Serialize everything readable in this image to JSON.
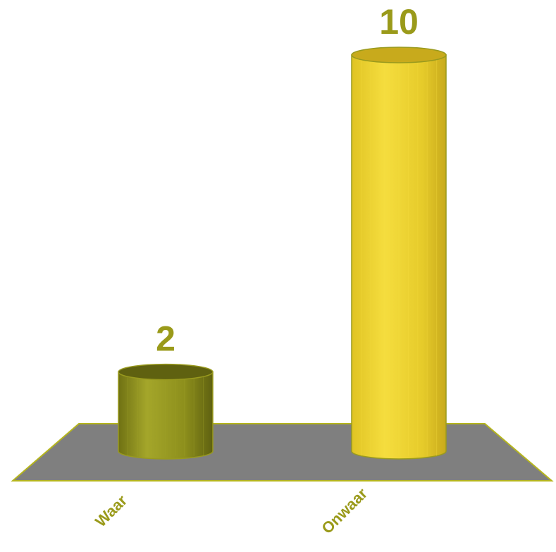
{
  "chart_data": {
    "type": "bar",
    "style": "3d-cylinder",
    "categories": [
      "Waar",
      "Onwaar"
    ],
    "values": [
      2,
      10
    ],
    "data_labels": [
      "2",
      "10"
    ],
    "title": "",
    "xlabel": "",
    "ylabel": "",
    "ylim": [
      0,
      10
    ],
    "grid": false,
    "legend": "none",
    "colors": {
      "bars": [
        "#8d8f1c",
        "#ecd22c"
      ],
      "bar_dark": [
        "#5f6110",
        "#c8aa1c"
      ],
      "bar_light": [
        "#a4a62a",
        "#f5dd3e"
      ],
      "bar_outline": "#999a1e",
      "floor": "#7f7f7f",
      "floor_outline": "#b5b51e",
      "labels": "#9a9a1a"
    }
  }
}
